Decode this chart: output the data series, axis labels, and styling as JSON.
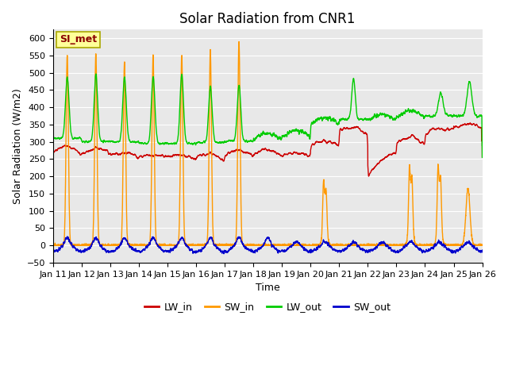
{
  "title": "Solar Radiation from CNR1",
  "ylabel": "Solar Radiation (W/m2)",
  "xlabel": "Time",
  "annotation": "SI_met",
  "colors": {
    "LW_in": "#cc0000",
    "SW_in": "#ff9900",
    "LW_out": "#00cc00",
    "SW_out": "#0000cc"
  },
  "line_width": 1.0,
  "background_plot": "#e8e8e8",
  "background_fig": "#ffffff",
  "grid_color": "#ffffff",
  "title_fontsize": 12,
  "label_fontsize": 9,
  "tick_fontsize": 8,
  "legend_fontsize": 9,
  "n_days": 15,
  "n_per_day": 288
}
